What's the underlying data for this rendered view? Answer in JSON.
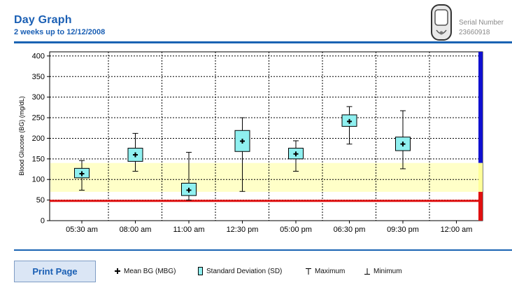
{
  "header": {
    "title": "Day Graph",
    "subtitle": "2 weeks up to 12/12/2008",
    "serial_label": "Serial Number",
    "serial_value": "23660918",
    "device_icon": "glucose-meter-icon"
  },
  "footer": {
    "print_button": "Print Page",
    "legend": [
      {
        "label": "Mean BG (MBG)",
        "icon": "plus-icon"
      },
      {
        "label": "Standard Deviation (SD)",
        "icon": "sd-box-icon"
      },
      {
        "label": "Maximum",
        "icon": "max-tick-icon"
      },
      {
        "label": "Minimum",
        "icon": "min-tick-icon"
      }
    ]
  },
  "chart_data": {
    "type": "boxplot",
    "ylabel": "Blood Glucose (BG) (mg/dL)",
    "ylim": [
      0,
      410
    ],
    "yticks": [
      0,
      50,
      100,
      150,
      200,
      250,
      300,
      350,
      400
    ],
    "categories": [
      "05:30 am",
      "08:00 am",
      "11:00 am",
      "12:30 pm",
      "05:00 pm",
      "06:30 pm",
      "09:30 pm",
      "12:00 am"
    ],
    "target_range": [
      70,
      140
    ],
    "hypo_line": 48,
    "grid": true,
    "points": [
      {
        "time": "05:30 am",
        "min": 74,
        "sd_low": 104,
        "mean": 114,
        "sd_high": 127,
        "max": 146
      },
      {
        "time": "08:00 am",
        "min": 120,
        "sd_low": 144,
        "mean": 160,
        "sd_high": 176,
        "max": 212
      },
      {
        "time": "11:00 am",
        "min": 50,
        "sd_low": 61,
        "mean": 74,
        "sd_high": 91,
        "max": 166
      },
      {
        "time": "12:30 pm",
        "min": 71,
        "sd_low": 168,
        "mean": 193,
        "sd_high": 219,
        "max": 250
      },
      {
        "time": "05:00 pm",
        "min": 120,
        "sd_low": 150,
        "mean": 162,
        "sd_high": 176,
        "max": 194
      },
      {
        "time": "06:30 pm",
        "min": 186,
        "sd_low": 229,
        "mean": 241,
        "sd_high": 257,
        "max": 277
      },
      {
        "time": "09:30 pm",
        "min": 126,
        "sd_low": 170,
        "mean": 186,
        "sd_high": 203,
        "max": 267
      }
    ],
    "colors": {
      "target_band": "#ffffc8",
      "hypo_line": "#e01010",
      "sd_box": "#8ff0f0",
      "side_high": "#1010d0",
      "side_target": "#ffff99",
      "side_low": "#e01010"
    }
  }
}
